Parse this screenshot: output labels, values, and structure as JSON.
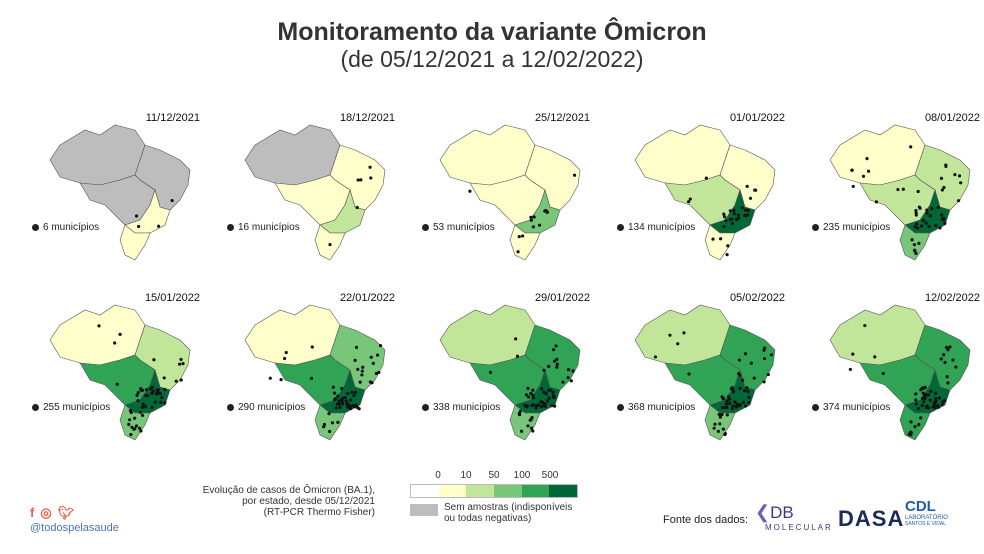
{
  "title": "Monitoramento da variante Ômicron",
  "subtitle": "(de 05/12/2021 a 12/02/2022)",
  "palette": {
    "gray": "#bdbdbd",
    "white": "#ffffff",
    "c1": "#ffffcc",
    "c2": "#c2e699",
    "c3": "#78c679",
    "c4": "#31a354",
    "c5": "#006837"
  },
  "maps": [
    {
      "date": "11/12/2021",
      "municipios": "6 municípios",
      "n": 6,
      "regions": [
        "gray",
        "gray",
        "gray",
        "c1",
        "c1"
      ]
    },
    {
      "date": "18/12/2021",
      "municipios": "16 municípios",
      "n": 16,
      "regions": [
        "gray",
        "c1",
        "c1",
        "c2",
        "c1"
      ]
    },
    {
      "date": "25/12/2021",
      "municipios": "53 municípios",
      "n": 53,
      "regions": [
        "c1",
        "c1",
        "c1",
        "c3",
        "c1"
      ]
    },
    {
      "date": "01/01/2022",
      "municipios": "134 municípios",
      "n": 134,
      "regions": [
        "c1",
        "c1",
        "c2",
        "c5",
        "c1"
      ]
    },
    {
      "date": "08/01/2022",
      "municipios": "235 municípios",
      "n": 235,
      "regions": [
        "c1",
        "c2",
        "c2",
        "c5",
        "c3"
      ]
    },
    {
      "date": "15/01/2022",
      "municipios": "255 municípios",
      "n": 255,
      "regions": [
        "c1",
        "c2",
        "c4",
        "c5",
        "c3"
      ]
    },
    {
      "date": "22/01/2022",
      "municipios": "290 municípios",
      "n": 290,
      "regions": [
        "c1",
        "c3",
        "c4",
        "c5",
        "c3"
      ]
    },
    {
      "date": "29/01/2022",
      "municipios": "338 municípios",
      "n": 338,
      "regions": [
        "c2",
        "c4",
        "c4",
        "c5",
        "c3"
      ]
    },
    {
      "date": "05/02/2022",
      "municipios": "368 municípios",
      "n": 368,
      "regions": [
        "c2",
        "c4",
        "c4",
        "c5",
        "c3"
      ]
    },
    {
      "date": "12/02/2022",
      "municipios": "374 municípios",
      "n": 374,
      "regions": [
        "c2",
        "c4",
        "c4",
        "c5",
        "c4"
      ]
    }
  ],
  "caption": [
    "Evolução de casos de Ômicron (BA.1),",
    "por estado, desde 05/12/2021",
    "(RT-PCR Thermo Fisher)"
  ],
  "legend": {
    "ticks": [
      "0",
      "10",
      "50",
      "100",
      "500"
    ],
    "colors": [
      "#ffffff",
      "#ffffcc",
      "#c2e699",
      "#78c679",
      "#31a354",
      "#006837"
    ],
    "no_sample": "Sem amostras (indisponíveis ou todas negativas)"
  },
  "social": {
    "icons": [
      "facebook-icon",
      "instagram-icon",
      "twitter-icon"
    ],
    "handle": "@todospelasaude"
  },
  "sources": {
    "label": "Fonte dos dados:",
    "logos": [
      "DB MOLECULAR",
      "DASA",
      "CDL LABORATÓRIO SANTOS E VIDAL"
    ],
    "db_main": "DB",
    "db_sub": "MOLECULAR",
    "dasa": "DASA",
    "cdl_main": "CDL",
    "cdl_sub": "LABORATÓRIO",
    "cdl_sub2": "SANTOS E VIDAL"
  }
}
